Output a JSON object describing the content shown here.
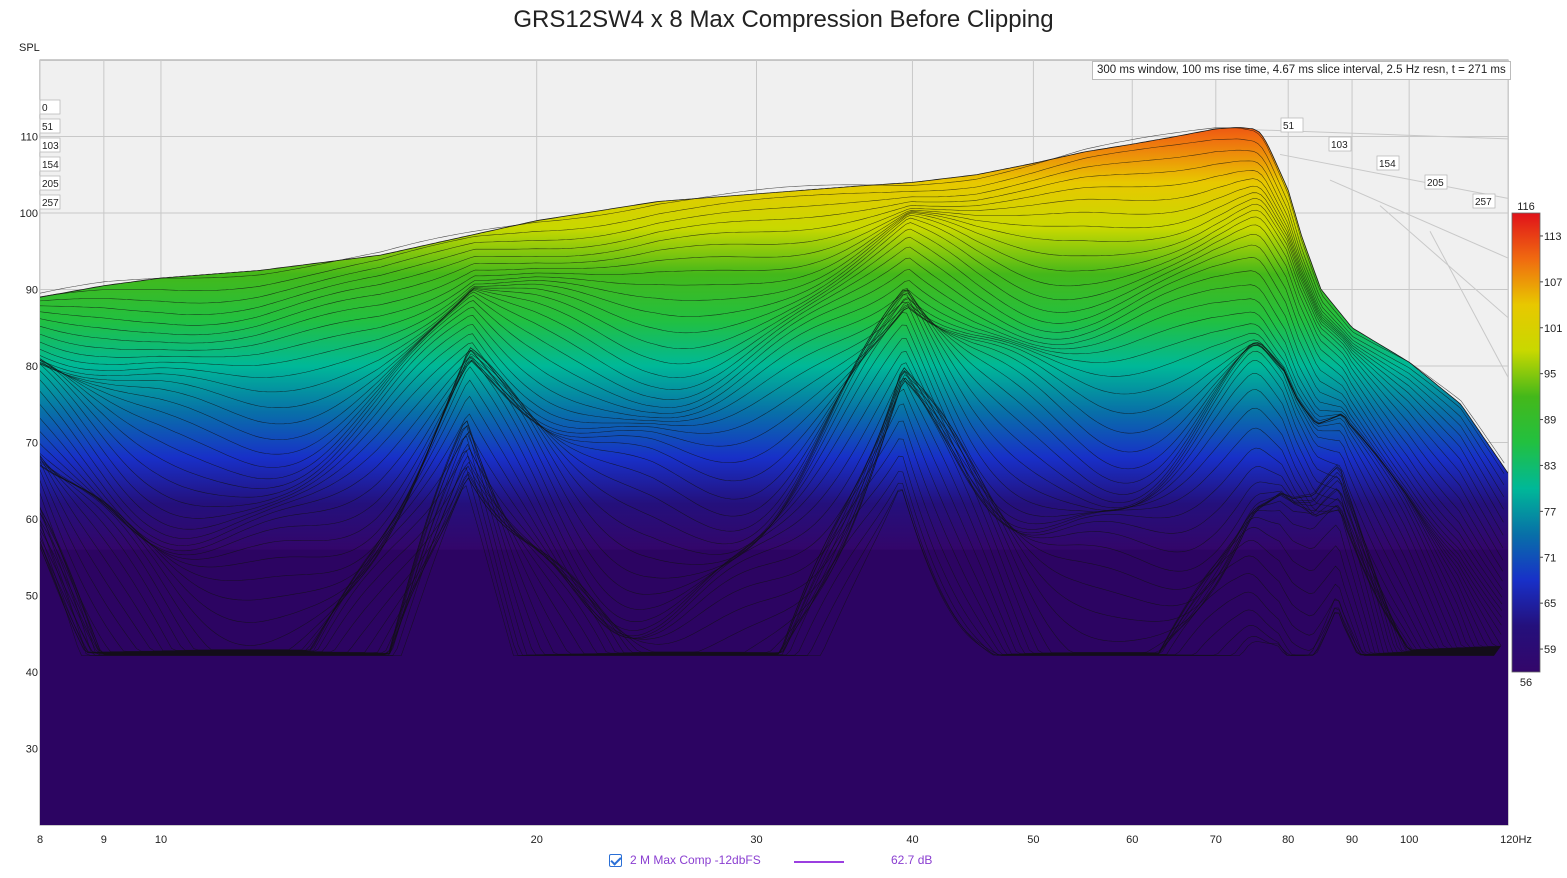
{
  "chart_data": {
    "type": "area",
    "subtype": "waterfall (cumulative spectral decay)",
    "title": "GRS12SW4 x 8 Max Compression Before Clipping",
    "ylabel": "SPL",
    "xunit": "Hz",
    "x_scale": "log",
    "xlim": [
      8,
      120
    ],
    "ylim": [
      20,
      120
    ],
    "x_ticks": [
      8,
      9,
      10,
      20,
      30,
      40,
      50,
      60,
      70,
      80,
      90,
      100,
      120
    ],
    "y_ticks": [
      30,
      40,
      50,
      60,
      70,
      80,
      90,
      100,
      110
    ],
    "info": "300 ms window, 100 ms rise time, 4.67 ms slice interval, 2.5 Hz resn, t = 271 ms",
    "slice_time_labels": [
      "0",
      "51",
      "103",
      "154",
      "205",
      "257"
    ],
    "right_time_labels": [
      "51",
      "103",
      "154",
      "205",
      "257"
    ],
    "floor_db": 56,
    "colorbar": {
      "ticks": [
        113,
        107,
        101,
        95,
        89,
        83,
        77,
        71,
        65,
        59
      ],
      "min": 56,
      "max": 116,
      "colors": [
        "#e0121a",
        "#f06a10",
        "#e8c800",
        "#c8d800",
        "#44b81a",
        "#22c040",
        "#00b898",
        "#0870a8",
        "#1830c8",
        "#24107c",
        "#33066a"
      ]
    },
    "front_slice": {
      "freq": [
        8,
        9,
        10,
        12,
        15,
        20,
        25,
        30,
        36,
        40,
        45,
        50,
        55,
        60,
        65,
        70,
        73,
        75,
        76,
        77,
        78,
        80,
        82,
        85,
        90,
        100,
        110,
        120
      ],
      "spl": [
        89,
        90.5,
        91.5,
        92.5,
        94.5,
        99,
        101.5,
        102.5,
        103.5,
        104,
        105,
        106.5,
        108,
        109,
        110,
        111,
        111.2,
        111,
        110.5,
        109,
        107,
        103,
        97,
        90,
        85,
        80.5,
        75,
        66
      ]
    },
    "legend": [
      {
        "checked": true,
        "name": "2 M Max Comp -12dbFS",
        "color": "#9b3fe0",
        "value": "62.7 dB"
      }
    ]
  }
}
